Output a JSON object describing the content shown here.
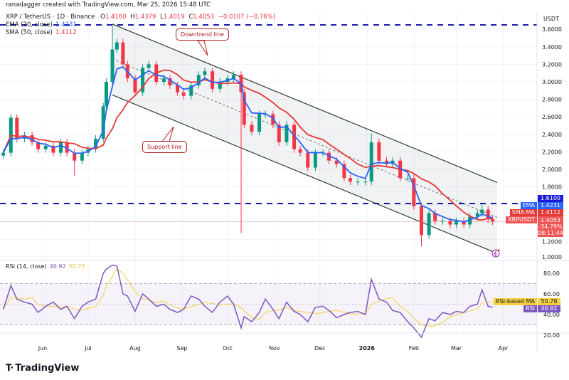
{
  "credit": "ranadagger created with TradingView.com, Mar 25, 2026 15:48 UTC",
  "legend": {
    "symbol": "XRP / TetherUS · 1D · Binance",
    "o_label": "O",
    "o": "1.4160",
    "h_label": "H",
    "h": "1.4379",
    "l_label": "L",
    "l": "1.4019",
    "c_label": "C",
    "c": "1.4053",
    "change": "−0.0107 (−0.76%)",
    "ema_label": "EMA (20, close)",
    "ema_value": "1.4231",
    "sma_label": "SMA (50, close)",
    "sma_value": "1.4112",
    "rsi_label": "RSI (14, close)",
    "rsi_value": "46.92",
    "rsi_ma_value": "50.78"
  },
  "price_axis": {
    "unit": "USDT",
    "ticks": [
      "3.6000",
      "3.4000",
      "3.2000",
      "3.0000",
      "2.8000",
      "2.6000",
      "2.4000",
      "2.2000",
      "2.0000",
      "1.8000",
      "1.2000",
      "1.0000"
    ],
    "tick_values": [
      3.6,
      3.4,
      3.2,
      3.0,
      2.8,
      2.6,
      2.4,
      2.2,
      2.0,
      1.8,
      1.2,
      1.0
    ]
  },
  "price_tags": {
    "level": "1.6100",
    "ema_name": "EMA",
    "ema": "1.4231",
    "sma_name": "SMA:MA",
    "sma": "1.4112",
    "symbol_name": "XRPUSDT",
    "last": "1.4053",
    "pct": "-34.79%",
    "countdown": "08:11:44"
  },
  "rsi_axis": {
    "ticks": [
      "80.00",
      "60.00",
      "40.00",
      "20.00"
    ],
    "tick_values": [
      80,
      60,
      40,
      20
    ]
  },
  "rsi_tags": {
    "ma_name": "RSI-based MA",
    "ma": "50.78",
    "rsi_name": "RSI",
    "rsi": "46.92"
  },
  "time_axis": {
    "labels": [
      "Jun",
      "Jul",
      "Aug",
      "Sep",
      "Oct",
      "Nov",
      "Dec",
      "2026",
      "Feb",
      "Mar",
      "Apr"
    ],
    "dates": [
      "2025-06-01",
      "2025-07-01",
      "2025-08-01",
      "2025-09-01",
      "2025-10-01",
      "2025-11-01",
      "2025-12-01",
      "2026-01-01",
      "2026-02-01",
      "2026-03-01",
      "2026-04-01"
    ]
  },
  "annotations": {
    "downtrend": "Downtrend line",
    "support": "Support line"
  },
  "brand": "TradingView",
  "colors": {
    "up": "#089981",
    "down": "#f23645",
    "ema": "#2962ff",
    "sma": "#e53935",
    "rsi": "#7e57c2",
    "rsi_ma": "#f5d142",
    "level": "#1a1aa6"
  },
  "chart_data": {
    "type": "candlestick",
    "symbol": "XRP / TetherUS",
    "interval": "1D",
    "ylim": [
      0.9,
      3.75
    ],
    "horizontal_levels": [
      3.65,
      1.61
    ],
    "channel": {
      "upper": [
        [
          "2025-07-17",
          3.66
        ],
        [
          "2026-03-28",
          1.85
        ]
      ],
      "middle": [
        [
          "2025-07-17",
          3.26
        ],
        [
          "2026-03-28",
          1.45
        ]
      ],
      "lower": [
        [
          "2025-07-17",
          2.85
        ],
        [
          "2026-03-28",
          1.04
        ]
      ]
    },
    "dates": [
      "2025-05-06",
      "2025-05-11",
      "2025-05-15",
      "2025-05-20",
      "2025-05-25",
      "2025-05-29",
      "2025-06-03",
      "2025-06-08",
      "2025-06-13",
      "2025-06-17",
      "2025-06-22",
      "2025-06-27",
      "2025-07-01",
      "2025-07-06",
      "2025-07-11",
      "2025-07-13",
      "2025-07-17",
      "2025-07-20",
      "2025-07-24",
      "2025-07-27",
      "2025-08-01",
      "2025-08-06",
      "2025-08-10",
      "2025-08-15",
      "2025-08-20",
      "2025-08-24",
      "2025-08-29",
      "2025-09-02",
      "2025-09-07",
      "2025-09-12",
      "2025-09-16",
      "2025-09-21",
      "2025-09-26",
      "2025-10-01",
      "2025-10-05",
      "2025-10-10",
      "2025-10-12",
      "2025-10-17",
      "2025-10-22",
      "2025-10-26",
      "2025-10-31",
      "2025-11-04",
      "2025-11-09",
      "2025-11-14",
      "2025-11-18",
      "2025-11-23",
      "2025-11-28",
      "2025-12-03",
      "2025-12-07",
      "2025-12-12",
      "2025-12-17",
      "2025-12-21",
      "2025-12-26",
      "2025-12-31",
      "2026-01-04",
      "2026-01-09",
      "2026-01-14",
      "2026-01-18",
      "2026-01-23",
      "2026-01-28",
      "2026-02-01",
      "2026-02-06",
      "2026-02-11",
      "2026-02-15",
      "2026-02-20",
      "2026-02-25",
      "2026-03-01",
      "2026-03-06",
      "2026-03-10",
      "2026-03-15",
      "2026-03-18",
      "2026-03-22",
      "2026-03-25"
    ],
    "close": [
      2.19,
      2.59,
      2.35,
      2.39,
      2.31,
      2.23,
      2.27,
      2.19,
      2.31,
      2.19,
      2.1,
      2.19,
      2.23,
      2.35,
      2.72,
      3.0,
      3.37,
      3.45,
      3.2,
      3.04,
      2.88,
      3.16,
      3.2,
      3.0,
      3.04,
      2.96,
      2.88,
      2.84,
      2.96,
      3.08,
      3.12,
      2.92,
      3.0,
      3.04,
      3.08,
      2.88,
      2.51,
      2.43,
      2.63,
      2.63,
      2.51,
      2.31,
      2.51,
      2.23,
      2.19,
      2.02,
      2.19,
      2.19,
      2.1,
      2.06,
      1.9,
      1.86,
      1.86,
      1.86,
      2.31,
      2.1,
      2.06,
      2.1,
      1.9,
      1.9,
      1.58,
      1.25,
      1.5,
      1.41,
      1.41,
      1.37,
      1.41,
      1.37,
      1.46,
      1.5,
      1.54,
      1.43,
      1.4053
    ],
    "extremes": [
      {
        "date": "2025-07-17",
        "high": 3.65
      },
      {
        "date": "2025-06-22",
        "low": 1.93
      },
      {
        "date": "2025-10-10",
        "low": 1.27
      },
      {
        "date": "2026-01-04",
        "high": 2.41
      },
      {
        "date": "2026-02-06",
        "low": 1.12
      },
      {
        "date": "2026-03-18",
        "high": 1.6
      }
    ],
    "rsi": [
      45,
      68,
      55,
      52,
      50,
      42,
      48,
      52,
      45,
      48,
      36,
      48,
      52,
      55,
      80,
      84,
      88,
      87,
      60,
      58,
      43,
      60,
      55,
      48,
      50,
      45,
      42,
      45,
      58,
      55,
      48,
      42,
      52,
      58,
      50,
      27,
      38,
      33,
      42,
      55,
      45,
      36,
      52,
      43,
      40,
      33,
      47,
      48,
      44,
      37,
      40,
      42,
      43,
      40,
      74,
      55,
      52,
      44,
      42,
      33,
      27,
      18,
      36,
      34,
      42,
      40,
      43,
      42,
      48,
      50,
      64,
      48,
      46.92
    ],
    "rsi_levels": [
      70,
      50,
      30
    ],
    "rsi_ylim": [
      10,
      95
    ]
  }
}
